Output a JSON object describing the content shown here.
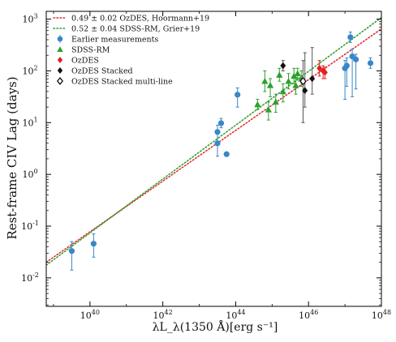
{
  "chart_data": {
    "type": "scatter",
    "xlabel": "λL_λ(1350 Å)[erg s⁻¹]",
    "ylabel": "Rest-frame CIV Lag (days)",
    "x_scale": "log",
    "y_scale": "log",
    "xlim_log10": [
      38.8,
      48.0
    ],
    "ylim_log10": [
      -2.55,
      3.15
    ],
    "x_ticks": [
      {
        "log": 40,
        "base": "10",
        "exp": "40"
      },
      {
        "log": 42,
        "base": "10",
        "exp": "42"
      },
      {
        "log": 44,
        "base": "10",
        "exp": "44"
      },
      {
        "log": 46,
        "base": "10",
        "exp": "46"
      },
      {
        "log": 48,
        "base": "10",
        "exp": "48"
      }
    ],
    "y_ticks": [
      {
        "log": -2,
        "base": "10",
        "exp": "-2"
      },
      {
        "log": -1,
        "base": "10",
        "exp": "-1"
      },
      {
        "log": 0,
        "base": "10",
        "exp": "0"
      },
      {
        "log": 1,
        "base": "10",
        "exp": "1"
      },
      {
        "log": 2,
        "base": "10",
        "exp": "2"
      },
      {
        "log": 3,
        "base": "10",
        "exp": "3"
      }
    ],
    "legend_position": "top-left",
    "fits": [
      {
        "name": "0.49 ± 0.02 OzDES, Hoormann+19",
        "color": "#e03030",
        "slope": 0.49,
        "anchor_x_log": 44,
        "anchor_y_log": 0.85
      },
      {
        "name": "0.52 ± 0.04 SDSS-RM, Grier+19",
        "color": "#33a033",
        "slope": 0.52,
        "anchor_x_log": 44,
        "anchor_y_log": 0.95
      }
    ],
    "series": [
      {
        "name": "Earlier measurements",
        "marker": "circle",
        "color": "#3a86c8",
        "points": [
          {
            "x": 39.5,
            "y": -1.48,
            "ylo": -1.85,
            "yhi": -1.3
          },
          {
            "x": 40.1,
            "y": -1.34,
            "ylo": -1.6,
            "yhi": -1.15
          },
          {
            "x": 43.5,
            "y": 0.6,
            "ylo": 0.35,
            "yhi": 0.78
          },
          {
            "x": 43.5,
            "y": 0.82,
            "ylo": 0.62,
            "yhi": 0.95
          },
          {
            "x": 43.6,
            "y": 0.99,
            "ylo": 0.9,
            "yhi": 1.08
          },
          {
            "x": 43.75,
            "y": 0.39,
            "ylo": 0.35,
            "yhi": 0.43
          },
          {
            "x": 44.05,
            "y": 1.54,
            "ylo": 1.3,
            "yhi": 1.67
          },
          {
            "x": 47.0,
            "y": 2.05,
            "ylo": 1.45,
            "yhi": 2.2
          },
          {
            "x": 47.05,
            "y": 2.1,
            "ylo": 1.7,
            "yhi": 2.25
          },
          {
            "x": 47.15,
            "y": 2.65,
            "ylo": 2.55,
            "yhi": 2.75
          },
          {
            "x": 47.2,
            "y": 2.28,
            "ylo": 1.5,
            "yhi": 2.42
          },
          {
            "x": 47.3,
            "y": 2.22,
            "ylo": 1.65,
            "yhi": 2.32
          },
          {
            "x": 47.7,
            "y": 2.15,
            "ylo": 2.05,
            "yhi": 2.25
          }
        ]
      },
      {
        "name": "SDSS-RM",
        "marker": "triangle",
        "color": "#2ca02c",
        "points": [
          {
            "x": 44.6,
            "y": 1.35,
            "ylo": 1.25,
            "yhi": 1.45
          },
          {
            "x": 44.8,
            "y": 1.8,
            "ylo": 1.6,
            "yhi": 2.0
          },
          {
            "x": 44.9,
            "y": 1.25,
            "ylo": 1.05,
            "yhi": 1.4
          },
          {
            "x": 44.95,
            "y": 1.72,
            "ylo": 1.5,
            "yhi": 1.85
          },
          {
            "x": 45.1,
            "y": 1.4,
            "ylo": 1.2,
            "yhi": 1.55
          },
          {
            "x": 45.2,
            "y": 1.92,
            "ylo": 1.8,
            "yhi": 2.05
          },
          {
            "x": 45.3,
            "y": 1.6,
            "ylo": 1.4,
            "yhi": 1.75
          },
          {
            "x": 45.45,
            "y": 1.8,
            "ylo": 1.65,
            "yhi": 1.95
          },
          {
            "x": 45.6,
            "y": 1.9,
            "ylo": 1.75,
            "yhi": 2.05
          },
          {
            "x": 45.65,
            "y": 1.72,
            "ylo": 1.55,
            "yhi": 1.87
          },
          {
            "x": 45.7,
            "y": 1.95,
            "ylo": 1.85,
            "yhi": 2.05
          },
          {
            "x": 45.8,
            "y": 1.85,
            "ylo": 1.7,
            "yhi": 2.0
          }
        ]
      },
      {
        "name": "OzDES",
        "marker": "diamond",
        "color": "#e02020",
        "points": [
          {
            "x": 46.3,
            "y": 2.05,
            "ylo": 1.9,
            "yhi": 2.2
          },
          {
            "x": 46.4,
            "y": 2.0,
            "ylo": 1.85,
            "yhi": 2.1
          },
          {
            "x": 46.45,
            "y": 1.97,
            "ylo": 1.85,
            "yhi": 2.07
          }
        ]
      },
      {
        "name": "OzDES Stacked",
        "marker": "diamond",
        "color": "#111111",
        "points": [
          {
            "x": 45.3,
            "y": 2.1,
            "ylo": 2.0,
            "yhi": 2.2
          },
          {
            "x": 45.9,
            "y": 1.62,
            "ylo": 1.3,
            "yhi": 2.35
          },
          {
            "x": 46.1,
            "y": 1.85,
            "ylo": 1.55,
            "yhi": 2.45
          }
        ]
      },
      {
        "name": "OzDES Stacked multi-line",
        "marker": "diamond-open",
        "color": "#111111",
        "points": [
          {
            "x": 45.85,
            "y": 1.8,
            "ylo": 1.0,
            "yhi": 2.2
          }
        ]
      }
    ]
  }
}
